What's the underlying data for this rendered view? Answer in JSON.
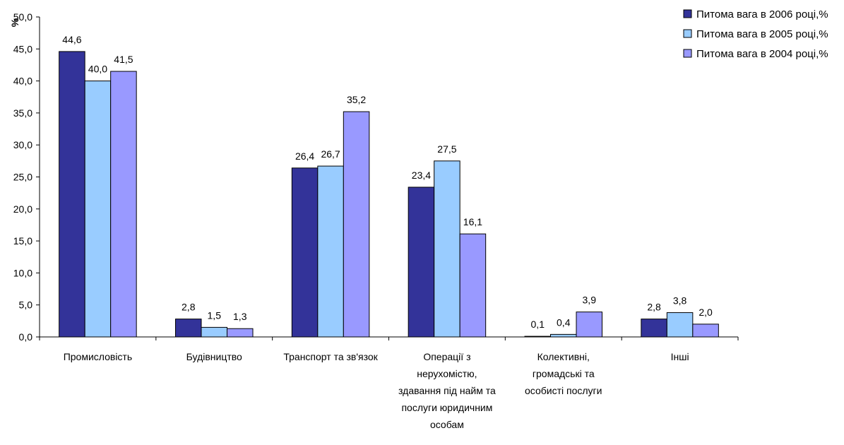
{
  "chart_data": {
    "type": "bar",
    "ylabel": "%",
    "ylim": [
      0,
      50
    ],
    "yticks": [
      "0,0",
      "5,0",
      "10,0",
      "15,0",
      "20,0",
      "25,0",
      "30,0",
      "35,0",
      "40,0",
      "45,0",
      "50,0"
    ],
    "categories": [
      [
        "Промисловість"
      ],
      [
        "Будівництво"
      ],
      [
        "Транспорт та зв'язок"
      ],
      [
        "Операції з",
        "нерухомістю,",
        "здавання під найм та",
        "послуги юридичним",
        "особам"
      ],
      [
        "Колективні,",
        "громадські та",
        "особисті послуги"
      ],
      [
        "Інші"
      ]
    ],
    "series": [
      {
        "name": "Питома вага в 2006 році,%",
        "color": "#333399",
        "values": [
          44.6,
          2.8,
          26.4,
          23.4,
          0.1,
          2.8
        ],
        "labels": [
          "44,6",
          "2,8",
          "26,4",
          "23,4",
          "0,1",
          "2,8"
        ]
      },
      {
        "name": "Питома вага в 2005 році,%",
        "color": "#99ccff",
        "values": [
          40.0,
          1.5,
          26.7,
          27.5,
          0.4,
          3.8
        ],
        "labels": [
          "40,0",
          "1,5",
          "26,7",
          "27,5",
          "0,4",
          "3,8"
        ]
      },
      {
        "name": "Питома вага в 2004 році,%",
        "color": "#9999ff",
        "values": [
          41.5,
          1.3,
          35.2,
          16.1,
          3.9,
          2.0
        ],
        "labels": [
          "41,5",
          "1,3",
          "35,2",
          "16,1",
          "3,9",
          "2,0"
        ]
      }
    ],
    "legend": "top-right",
    "grid": false
  }
}
